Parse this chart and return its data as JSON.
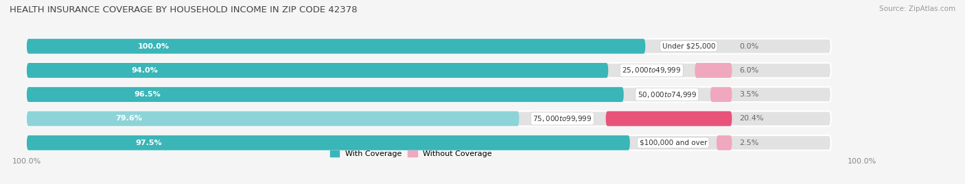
{
  "title": "HEALTH INSURANCE COVERAGE BY HOUSEHOLD INCOME IN ZIP CODE 42378",
  "source": "Source: ZipAtlas.com",
  "categories": [
    "Under $25,000",
    "$25,000 to $49,999",
    "$50,000 to $74,999",
    "$75,000 to $99,999",
    "$100,000 and over"
  ],
  "with_coverage": [
    100.0,
    94.0,
    96.5,
    79.6,
    97.5
  ],
  "without_coverage": [
    0.0,
    6.0,
    3.5,
    20.4,
    2.5
  ],
  "color_with": "#3ab5b8",
  "color_without_row0": "#f0a8be",
  "color_without_row1": "#f0a8be",
  "color_without_row2": "#f0a8be",
  "color_without_row3": "#e8537a",
  "color_without_row4": "#f0a8be",
  "color_with_light_row3": "#8dd4d8",
  "bg_color": "#f5f5f5",
  "bar_bg_color": "#e2e2e2",
  "title_fontsize": 9.5,
  "label_fontsize": 8,
  "source_fontsize": 7.5,
  "legend_fontsize": 8,
  "tick_fontsize": 8
}
